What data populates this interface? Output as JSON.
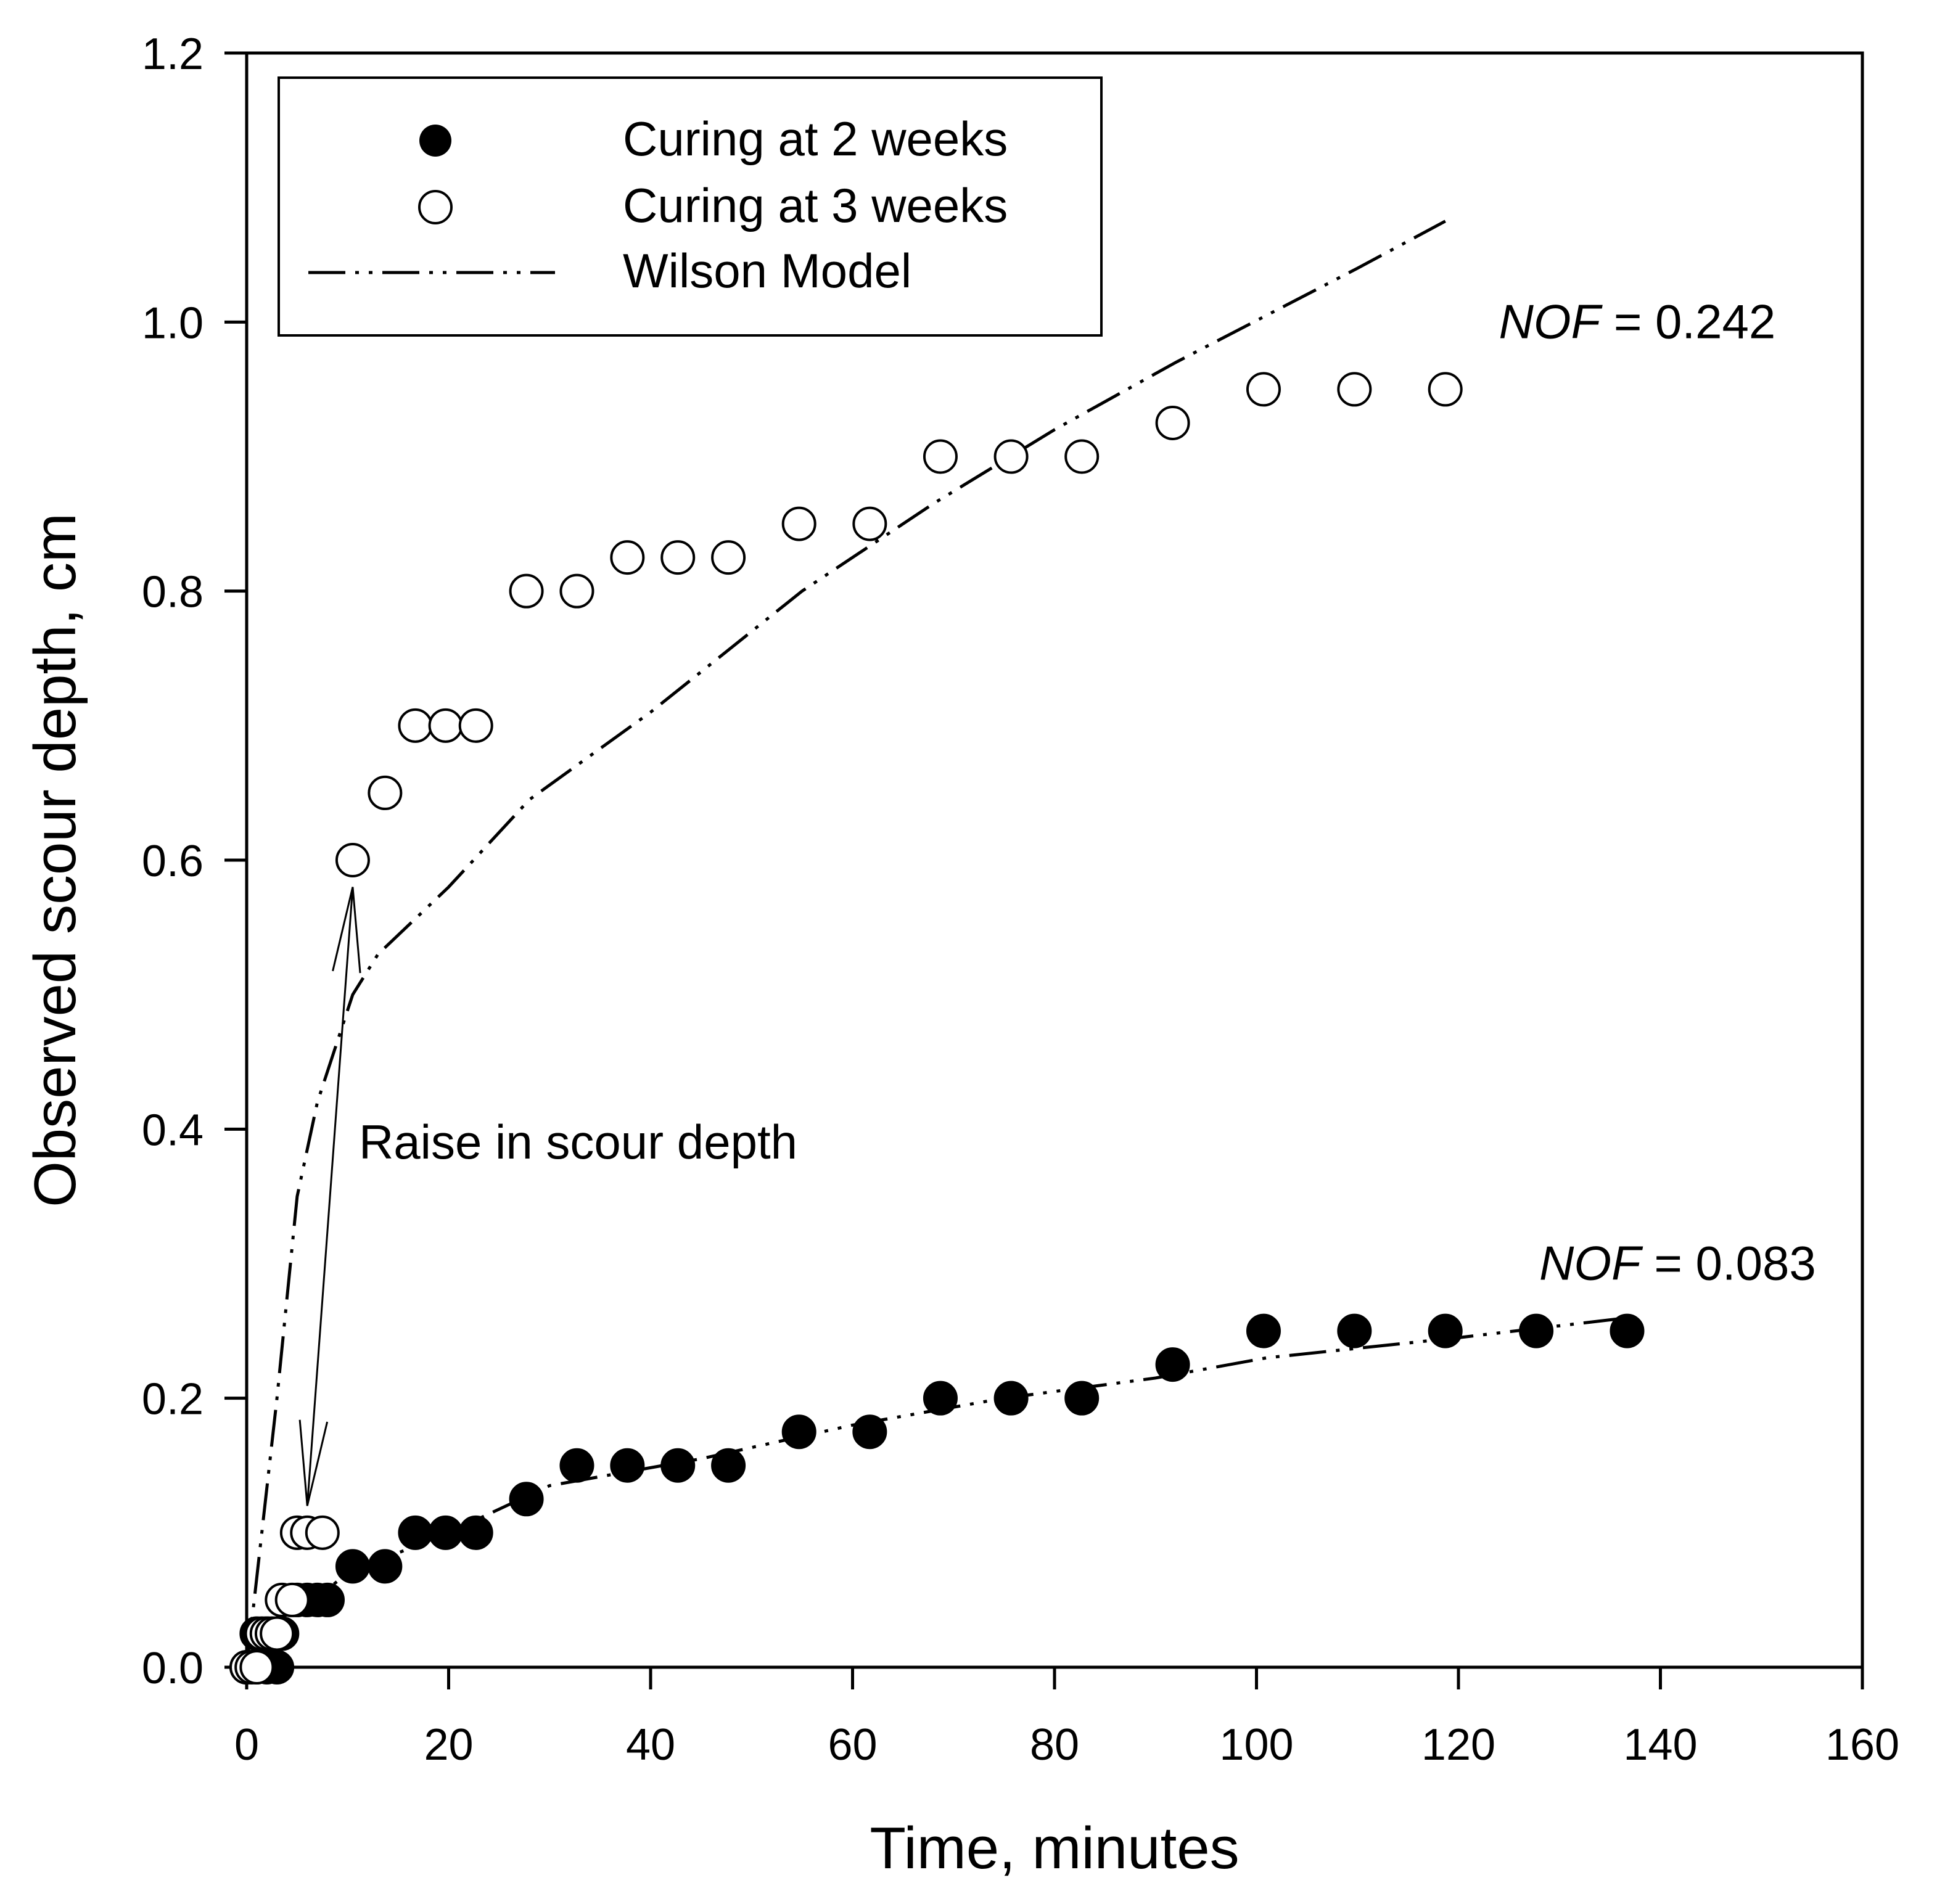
{
  "chart_data": {
    "type": "scatter",
    "title": "",
    "xlabel": "Time, minutes",
    "ylabel": "Observed scour depth, cm",
    "xlim": [
      0,
      160
    ],
    "ylim": [
      0,
      1.2
    ],
    "xticks": [
      "0",
      "20",
      "40",
      "60",
      "80",
      "100",
      "120",
      "140",
      "160"
    ],
    "yticks": [
      "0.0",
      "0.2",
      "0.4",
      "0.6",
      "0.8",
      "1.0",
      "1.2"
    ],
    "grid": false,
    "legend_position": "top-left",
    "legend": [
      "Curing at 2 weeks",
      "Curing at 3 weeks",
      "Wilson Model"
    ],
    "series": [
      {
        "name": "Curing at 2 weeks",
        "marker": "filled-circle",
        "x": [
          0,
          1,
          2,
          3,
          1,
          2,
          3.5,
          5,
          6,
          7,
          8,
          10.5,
          13.7,
          16.7,
          19.7,
          22.7,
          27.7,
          32.7,
          37.7,
          42.7,
          47.7,
          54.7,
          61.7,
          68.7,
          75.7,
          82.7,
          91.7,
          100.7,
          109.7,
          118.7,
          127.7,
          136.7
        ],
        "y": [
          0,
          0,
          0,
          0,
          0.025,
          0.025,
          0.025,
          0.05,
          0.05,
          0.05,
          0.05,
          0.075,
          0.075,
          0.1,
          0.1,
          0.1,
          0.125,
          0.15,
          0.15,
          0.15,
          0.15,
          0.175,
          0.175,
          0.2,
          0.2,
          0.2,
          0.225,
          0.25,
          0.25,
          0.25,
          0.25,
          0.25
        ]
      },
      {
        "name": "Curing at 3 weeks",
        "marker": "open-circle",
        "x": [
          0,
          0.5,
          1,
          1.5,
          2,
          2.5,
          3,
          3.5,
          4.5,
          5,
          6,
          7.5,
          10.5,
          13.7,
          16.7,
          19.7,
          22.7,
          27.7,
          32.7,
          37.7,
          42.7,
          47.7,
          54.7,
          61.7,
          68.7,
          75.7,
          82.7,
          91.7,
          100.7,
          109.7,
          118.7
        ],
        "y": [
          0,
          0,
          0,
          0.025,
          0.025,
          0.025,
          0.025,
          0.05,
          0.05,
          0.1,
          0.1,
          0.1,
          0.6,
          0.65,
          0.7,
          0.7,
          0.7,
          0.8,
          0.8,
          0.825,
          0.825,
          0.825,
          0.85,
          0.85,
          0.9,
          0.9,
          0.9,
          0.925,
          0.95,
          0.95,
          0.95
        ]
      },
      {
        "name": "Wilson Model (3 weeks)",
        "line": "dash-dot-dot",
        "x": [
          0,
          3,
          5,
          7,
          10.5,
          13,
          20,
          28,
          40,
          55,
          68,
          80,
          92,
          101,
          110,
          118.7
        ],
        "y": [
          0,
          0.2,
          0.35,
          0.42,
          0.5,
          0.53,
          0.58,
          0.645,
          0.71,
          0.8,
          0.865,
          0.92,
          0.97,
          1.005,
          1.04,
          1.075
        ]
      },
      {
        "name": "Wilson Model (2 weeks)",
        "line": "dash-dot-dot",
        "x": [
          0,
          5,
          10,
          20,
          30,
          45,
          60,
          75,
          90,
          101,
          120,
          137
        ],
        "y": [
          0,
          0.04,
          0.07,
          0.1,
          0.135,
          0.155,
          0.18,
          0.2,
          0.215,
          0.23,
          0.245,
          0.26
        ]
      }
    ],
    "annotations": {
      "nof_upper": {
        "label": "NOF",
        "value": " = 0.242",
        "x": 124,
        "y": 1.0
      },
      "nof_lower": {
        "label": "NOF",
        "value": " = 0.083",
        "x": 128,
        "y": 0.3
      },
      "raise": {
        "text": "Raise in scour depth",
        "x": 10.5,
        "y": 0.39
      },
      "arrow": {
        "from": [
          6,
          0.12
        ],
        "to": [
          10.5,
          0.58
        ]
      }
    }
  }
}
